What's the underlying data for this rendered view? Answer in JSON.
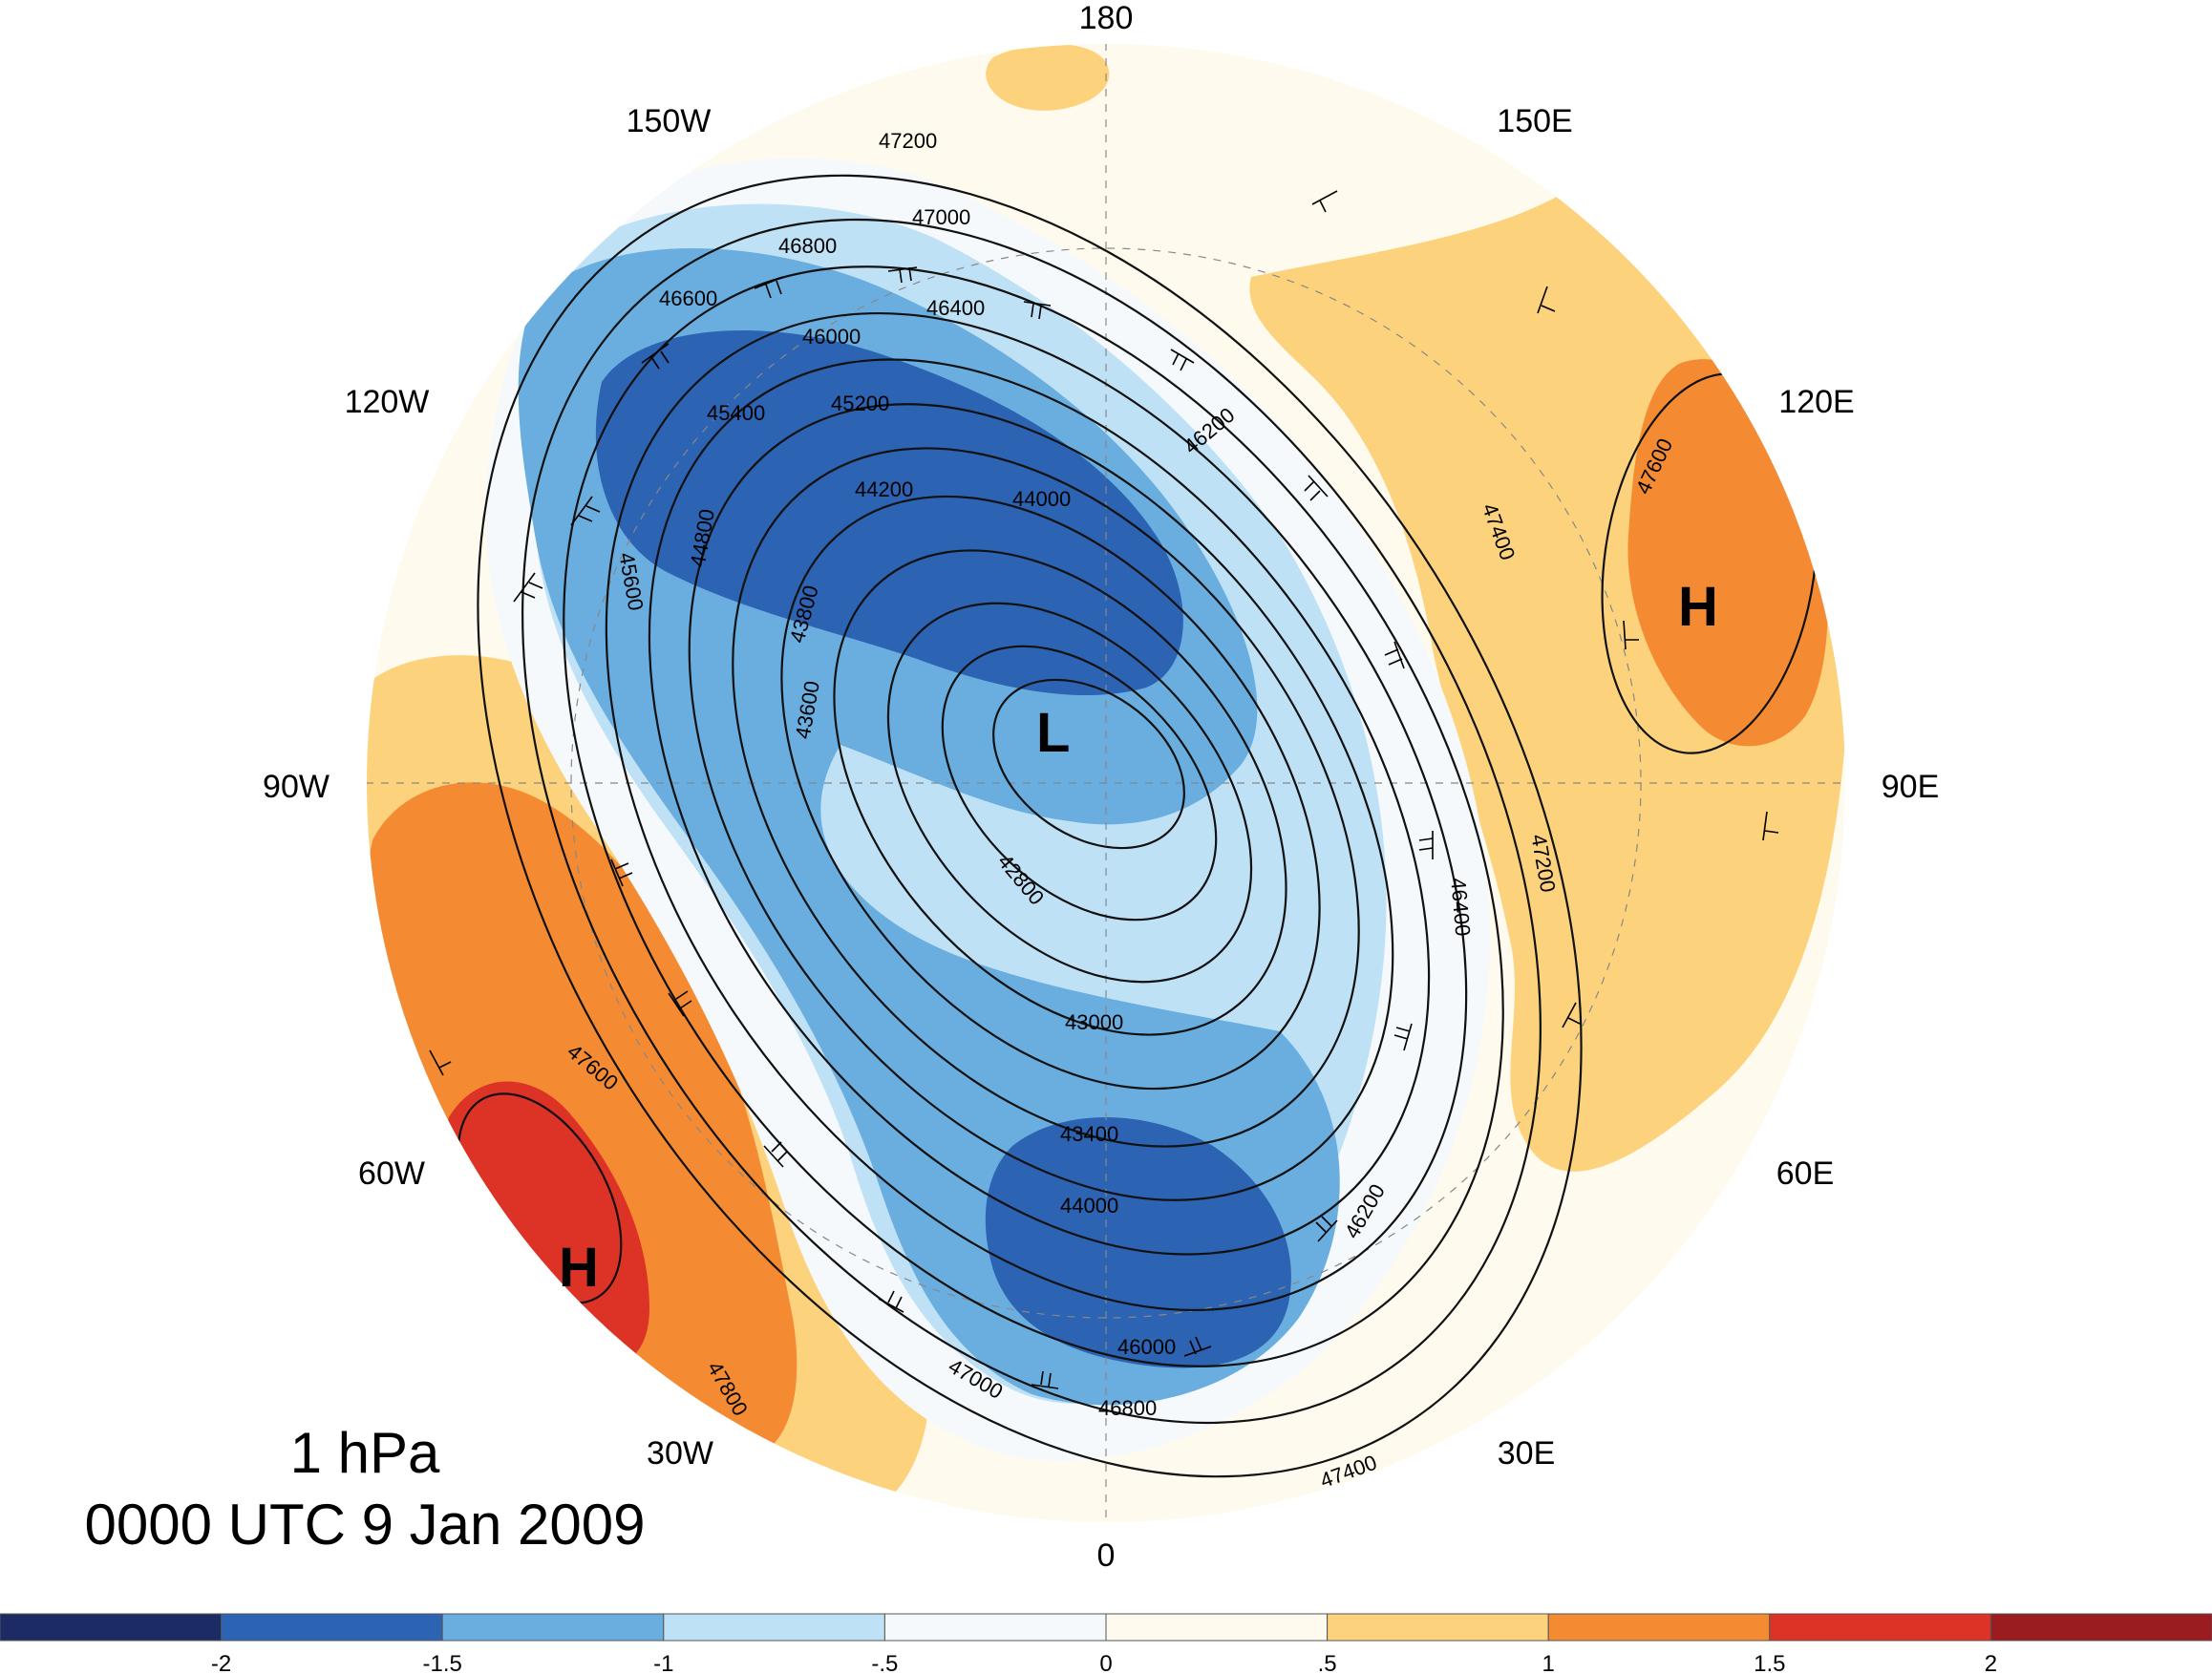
{
  "title": {
    "level": "1 hPa",
    "time": "0000 UTC 9 Jan 2009"
  },
  "longitude_labels": {
    "lon_180": "180",
    "lon_150w": "150W",
    "lon_150e": "150E",
    "lon_120w": "120W",
    "lon_120e": "120E",
    "lon_90w": "90W",
    "lon_90e": "90E",
    "lon_60w": "60W",
    "lon_60e": "60E",
    "lon_30w": "30W",
    "lon_30e": "30E",
    "lon_0": "0"
  },
  "pressure_centers": {
    "low_arctic": "L",
    "high_siberia": "H",
    "high_atlantic": "H"
  },
  "contour_labels": {
    "c1": "47200",
    "c2": "47000",
    "c3": "46800",
    "c4": "46600",
    "c5": "46400",
    "c6": "46000",
    "c7": "45400",
    "c8": "45200",
    "c9": "44200",
    "c10": "44000",
    "c11": "44800",
    "c12": "43800",
    "c13": "43600",
    "c14": "42800",
    "c15": "43000",
    "c16": "43400",
    "c17": "44000",
    "c18": "46000",
    "c19": "46800",
    "c20": "47000",
    "c21": "47400",
    "c22": "47600",
    "c23": "47800",
    "c24": "46200",
    "c25": "47400",
    "c26": "47600",
    "c27": "47200",
    "c28": "46400",
    "c29": "45600",
    "c30": "46200"
  },
  "colorbar": {
    "colors": [
      "#1d2b64",
      "#2c63b3",
      "#6aaee0",
      "#bfe1f5",
      "#f5f9fc",
      "#fefaee",
      "#fcd27d",
      "#f48b33",
      "#dd3326",
      "#9b1c20"
    ],
    "labels": [
      "-2",
      "-1.5",
      "-1",
      "-.5",
      "0",
      ".5",
      "1",
      "1.5",
      "2"
    ]
  },
  "colors": {
    "dark_blue": "#2c63b3",
    "mid_blue": "#6aaee0",
    "light_blue": "#bfe1f5",
    "pale_blue": "#f5f9fc",
    "cream": "#fefaee",
    "light_orange": "#fcd27d",
    "orange": "#f48b33",
    "red": "#dd3326"
  }
}
